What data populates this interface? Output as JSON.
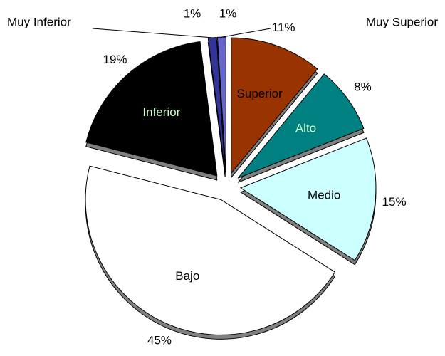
{
  "chart_data": {
    "type": "pie",
    "categories": [
      "Superior",
      "Alto",
      "Medio",
      "Bajo",
      "Inferior",
      "Muy Inferior",
      "Muy Superior"
    ],
    "values": [
      11,
      8,
      15,
      45,
      19,
      1,
      1
    ],
    "value_labels": [
      "11%",
      "8%",
      "15%",
      "45%",
      "19%",
      "1%",
      "1%"
    ],
    "colors": [
      "#993300",
      "#008080",
      "#ccffff",
      "#ffffff",
      "#000000",
      "#333399",
      "#6666cc"
    ],
    "label_colors": [
      "#000000",
      "#ccffcc",
      "#000000",
      "#000000",
      "#ccffcc",
      "#000000",
      "#000000"
    ],
    "exploded": true
  }
}
